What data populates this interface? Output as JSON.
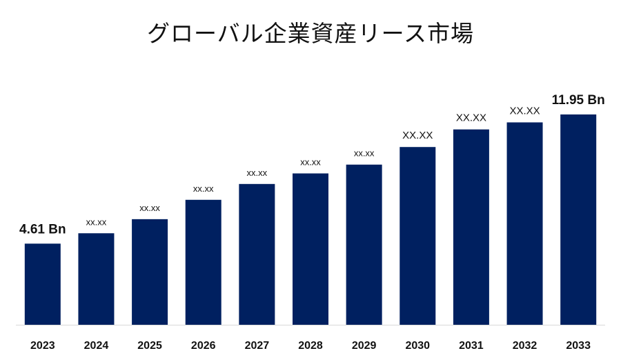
{
  "chart_data": {
    "type": "bar",
    "title": "グローバル企業資産リース市場",
    "categories": [
      "2023",
      "2024",
      "2025",
      "2026",
      "2027",
      "2028",
      "2029",
      "2030",
      "2031",
      "2032",
      "2033"
    ],
    "values": [
      4.61,
      5.2,
      6.0,
      7.1,
      8.0,
      8.6,
      9.1,
      10.1,
      11.1,
      11.5,
      11.95
    ],
    "data_labels": [
      "4.61 Bn",
      "xx.xx",
      "xx.xx",
      "xx.xx",
      "xx.xx",
      "xx.xx",
      "xx.xx",
      "XX.XX",
      "XX.XX",
      "XX.XX",
      "11.95 Bn"
    ],
    "xlabel": "",
    "ylabel": "",
    "ylim": [
      0,
      14
    ],
    "grid": false,
    "legend": "none",
    "bar_color": "#002060"
  }
}
